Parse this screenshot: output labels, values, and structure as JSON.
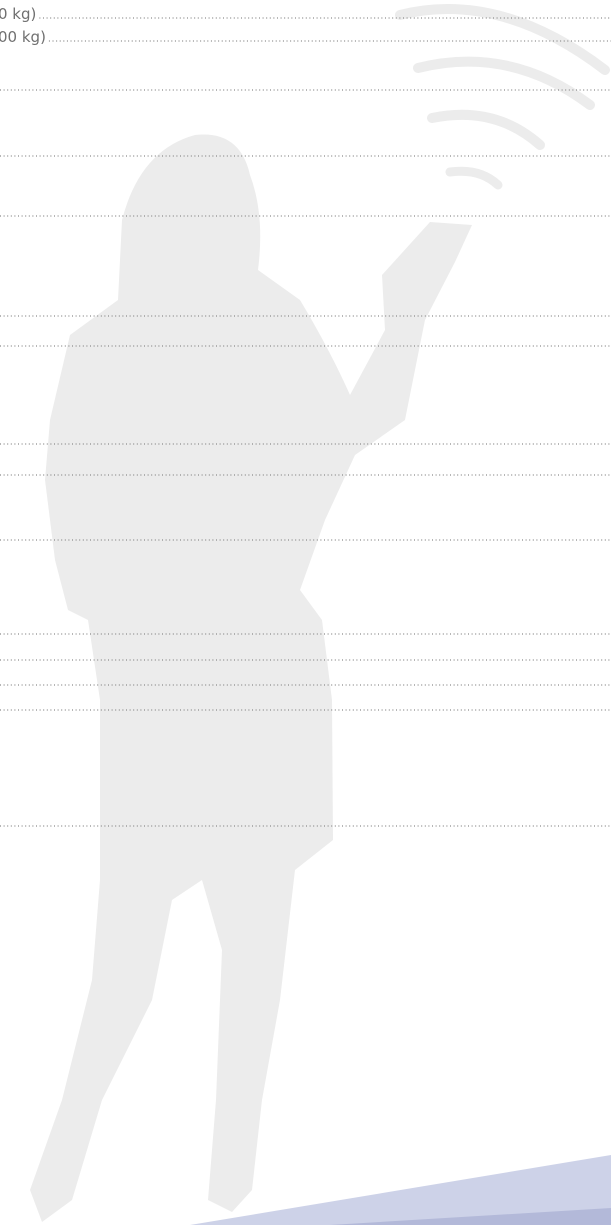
{
  "lines": [
    {
      "text": "0 kg)"
    },
    {
      "text": "00 kg)"
    }
  ]
}
